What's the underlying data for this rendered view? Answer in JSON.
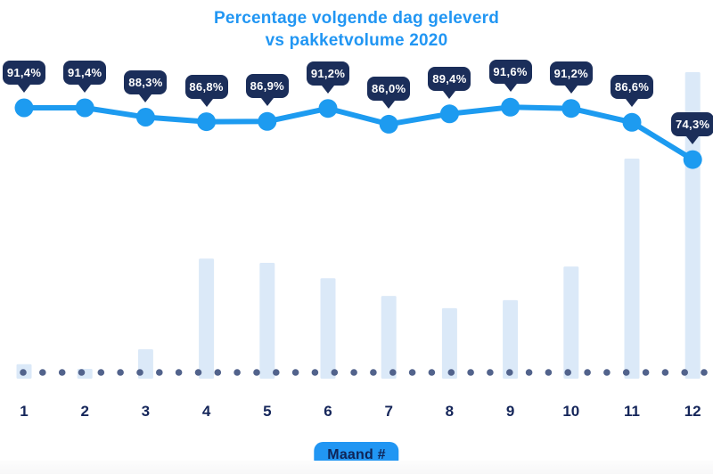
{
  "chart_data": {
    "type": "line+bar combo",
    "title": "Percentage volgende dag geleverd",
    "subtitle": "vs pakketvolume 2020",
    "xlabel": "Maand #",
    "categories": [
      "1",
      "2",
      "3",
      "4",
      "5",
      "6",
      "7",
      "8",
      "9",
      "10",
      "11",
      "12"
    ],
    "legend": "none (no legend shown)",
    "grid": "off",
    "y_axis": "none (values shown as data labels only)",
    "series": [
      {
        "name": "Percentage volgende dag geleverd",
        "type": "line",
        "unit": "%",
        "values": [
          91.4,
          91.4,
          88.3,
          86.8,
          86.9,
          91.2,
          86.0,
          89.4,
          91.6,
          91.2,
          86.6,
          74.3
        ],
        "labels": [
          "91,4%",
          "91,4%",
          "88,3%",
          "86,8%",
          "86,9%",
          "91,2%",
          "86,0%",
          "89,4%",
          "91,6%",
          "91,2%",
          "86,6%",
          "74,3%"
        ]
      },
      {
        "name": "Pakketvolume 2020",
        "type": "bar",
        "unit": "relative volume (0-100, no axis labeled; estimated from bar heights)",
        "values": [
          4.7,
          3.2,
          9.6,
          39.2,
          37.8,
          32.8,
          27.0,
          23.0,
          25.6,
          36.6,
          71.8,
          100
        ]
      }
    ],
    "baseline_dotted": true
  },
  "colors": {
    "background": "#ffffff",
    "title_blue": "#2196f3",
    "line_blue": "#1d9bf0",
    "marker_blue": "#1d9bf0",
    "badge_navy": "#1b2e5a",
    "tick_navy": "#15265a",
    "bar_light_blue": "#dbe9f8",
    "baseline_dot_slate": "#52638c",
    "xlabel_badge_bg": "#2196f3",
    "xlabel_badge_text": "#0f2456",
    "footer_band": "#f7f7f8"
  }
}
